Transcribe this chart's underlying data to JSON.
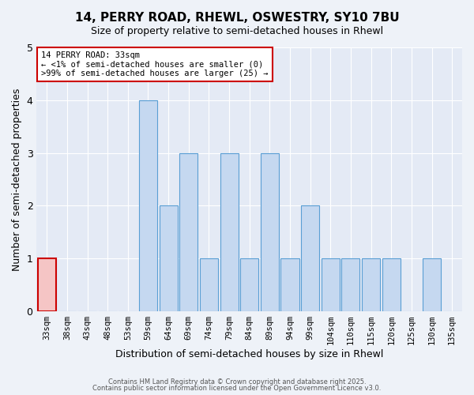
{
  "title": "14, PERRY ROAD, RHEWL, OSWESTRY, SY10 7BU",
  "subtitle": "Size of property relative to semi-detached houses in Rhewl",
  "xlabel": "Distribution of semi-detached houses by size in Rhewl",
  "ylabel": "Number of semi-detached properties",
  "bin_labels": [
    "33sqm",
    "38sqm",
    "43sqm",
    "48sqm",
    "53sqm",
    "59sqm",
    "64sqm",
    "69sqm",
    "74sqm",
    "79sqm",
    "84sqm",
    "89sqm",
    "94sqm",
    "99sqm",
    "104sqm",
    "110sqm",
    "115sqm",
    "120sqm",
    "125sqm",
    "130sqm",
    "135sqm"
  ],
  "bar_values": [
    1,
    0,
    0,
    0,
    0,
    4,
    2,
    3,
    1,
    3,
    1,
    3,
    1,
    2,
    1,
    1,
    1,
    1,
    0,
    1,
    0
  ],
  "bar_color": "#c5d8f0",
  "bar_edge_color": "#5a9fd4",
  "highlight_bar_index": 0,
  "highlight_bar_color": "#f5c5c5",
  "highlight_bar_edge_color": "#cc0000",
  "ylim": [
    0,
    5
  ],
  "yticks": [
    0,
    1,
    2,
    3,
    4,
    5
  ],
  "annotation_title": "14 PERRY ROAD: 33sqm",
  "annotation_line1": "← <1% of semi-detached houses are smaller (0)",
  "annotation_line2": ">99% of semi-detached houses are larger (25) →",
  "footer1": "Contains HM Land Registry data © Crown copyright and database right 2025.",
  "footer2": "Contains public sector information licensed under the Open Government Licence v3.0.",
  "bg_color": "#eef2f8",
  "plot_bg_color": "#e4eaf5"
}
